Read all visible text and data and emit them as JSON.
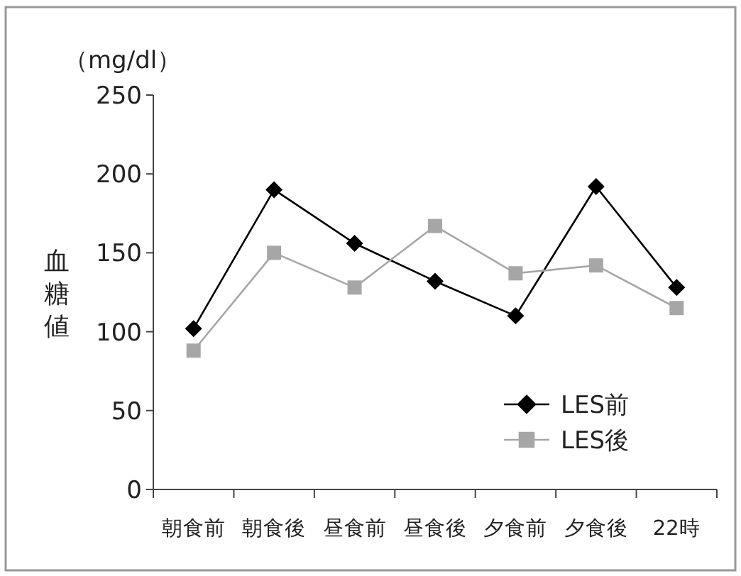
{
  "chart_data": {
    "type": "line",
    "ylabel": "血糖値",
    "annotations": [
      "（mg/dl）"
    ],
    "categories": [
      "朝食前",
      "朝食後",
      "昼食前",
      "昼食後",
      "夕食前",
      "夕食後",
      "22時"
    ],
    "series": [
      {
        "name": "LES前",
        "color": "#000000",
        "marker": "diamond",
        "values": [
          102,
          190,
          156,
          132,
          110,
          192,
          128
        ]
      },
      {
        "name": "LES後",
        "color": "#a6a6a6",
        "marker": "square",
        "values": [
          88,
          150,
          128,
          167,
          137,
          142,
          115
        ]
      }
    ],
    "ylim": [
      0,
      250
    ],
    "yticks": [
      0,
      50,
      100,
      150,
      200,
      250
    ],
    "grid": false,
    "legend": "bottom right"
  }
}
